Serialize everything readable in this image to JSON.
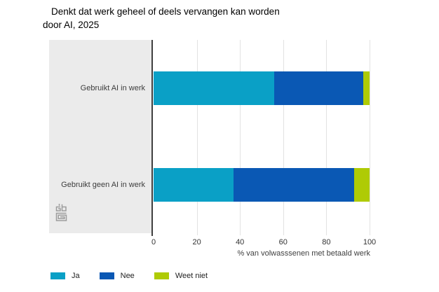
{
  "header": {
    "title_line1": "Denkt dat werk geheel of deels vervangen kan worden",
    "title_line2": "door AI, 2025"
  },
  "icons": {
    "logo": "cbs-logo"
  },
  "chart_data": {
    "type": "bar",
    "orientation": "horizontal",
    "stacked": true,
    "title": "Denkt dat werk geheel of deels vervangen kan worden door AI, 2025",
    "categories": [
      "Gebruikt AI in werk",
      "Gebruikt geen AI in werk"
    ],
    "series": [
      {
        "name": "Ja",
        "color": "#0aa0c6",
        "values": [
          56,
          37
        ]
      },
      {
        "name": "Nee",
        "color": "#0a58b4",
        "values": [
          41,
          56
        ]
      },
      {
        "name": "Weet niet",
        "color": "#afcb05",
        "values": [
          3,
          7
        ]
      }
    ],
    "xlabel": "% van volwasssenen met betaald werk",
    "xlim": [
      0,
      100
    ],
    "xticks": [
      0,
      20,
      40,
      60,
      80,
      100
    ],
    "grid": true,
    "legend_position": "bottom",
    "colors": {
      "panel_background": "#ebebeb",
      "axis_line": "#3f3f3f",
      "gridline": "#e2e2e2"
    }
  }
}
